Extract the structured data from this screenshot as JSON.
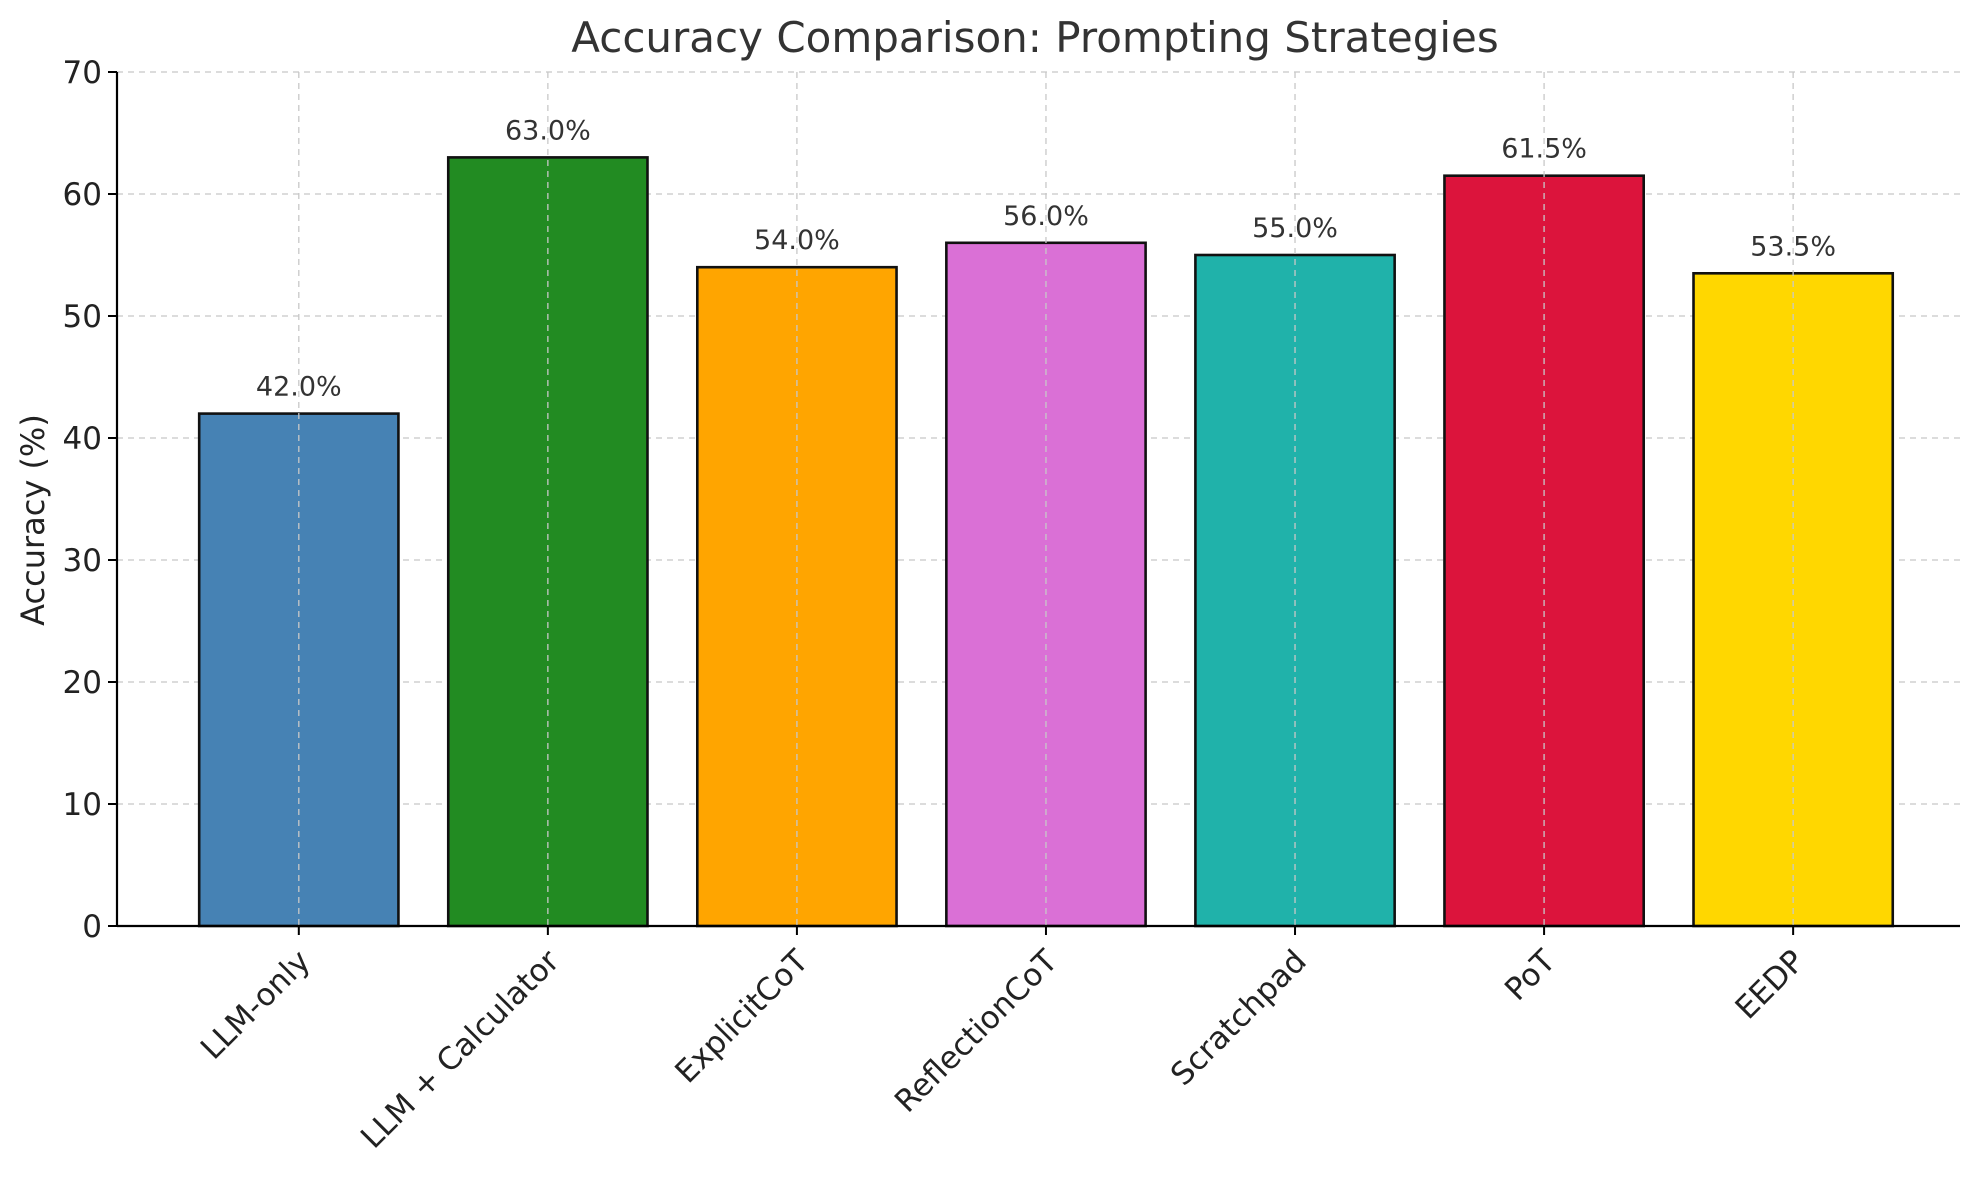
{
  "chart_data": {
    "type": "bar",
    "title": "Accuracy Comparison: Prompting Strategies",
    "xlabel": "",
    "ylabel": "Accuracy (%)",
    "ylim": [
      0,
      70
    ],
    "yticks": [
      0,
      10,
      20,
      30,
      40,
      50,
      60,
      70
    ],
    "grid": true,
    "categories": [
      "LLM-only",
      "LLM + Calculator",
      "ExplicitCoT",
      "ReflectionCoT",
      "Scratchpad",
      "PoT",
      "EEDP"
    ],
    "values": [
      42.0,
      63.0,
      54.0,
      56.0,
      55.0,
      61.5,
      53.5
    ],
    "data_labels": [
      "42.0%",
      "63.0%",
      "54.0%",
      "56.0%",
      "55.0%",
      "61.5%",
      "53.5%"
    ],
    "colors": [
      "#4682B4",
      "#228B22",
      "#FFA500",
      "#DA70D6",
      "#20B2AA",
      "#DC143C",
      "#FFD700"
    ]
  }
}
